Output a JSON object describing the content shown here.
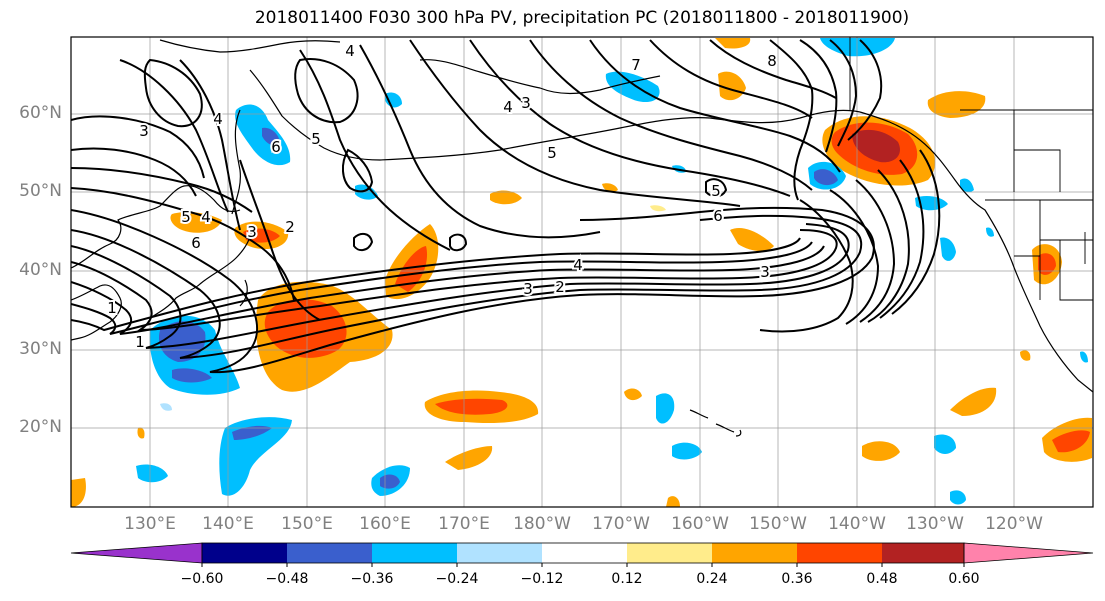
{
  "title": "2018011400 F030 300 hPa PV, precipitation PC (2018011800 - 2018011900)",
  "lat_labels": [
    "60°N",
    "50°N",
    "40°N",
    "30°N",
    "20°N"
  ],
  "lon_labels": [
    "130°E",
    "140°E",
    "150°E",
    "160°E",
    "170°E",
    "180°W",
    "170°W",
    "160°W",
    "150°W",
    "140°W",
    "130°W",
    "120°W"
  ],
  "contour_labels": [
    "1",
    "1",
    "2",
    "3",
    "4",
    "5",
    "6",
    "3",
    "2",
    "3",
    "4",
    "5",
    "6",
    "3",
    "4",
    "5",
    "6",
    "7",
    "8",
    "5",
    "4",
    "4",
    "3"
  ],
  "colorbar": {
    "tick_labels": [
      "−0.60",
      "−0.48",
      "−0.36",
      "−0.24",
      "−0.12",
      "0.12",
      "0.24",
      "0.36",
      "0.48",
      "0.60"
    ],
    "colors": [
      "#9932cc",
      "#00008b",
      "#3a5fcd",
      "#00bfff",
      "#b0e2ff",
      "#ffffff",
      "#ffec8b",
      "#ffa500",
      "#ff4500",
      "#b22222",
      "#ff82ab"
    ]
  }
}
